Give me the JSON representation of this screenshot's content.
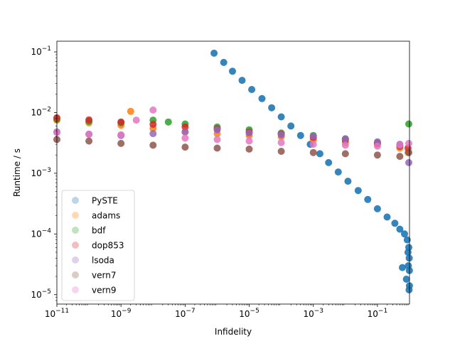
{
  "chart_data": {
    "type": "scatter",
    "title": "",
    "xlabel": "Infidelity",
    "ylabel": "Runtime / s",
    "x_scale": "log",
    "y_scale": "log",
    "xlim": [
      1e-11,
      1
    ],
    "ylim": [
      7e-06,
      0.15
    ],
    "x_ticks": [
      1e-11,
      1e-09,
      1e-07,
      1e-05,
      0.001,
      0.1
    ],
    "x_tick_labels": [
      {
        "base": "10",
        "exp": "−11"
      },
      {
        "base": "10",
        "exp": "−9"
      },
      {
        "base": "10",
        "exp": "−7"
      },
      {
        "base": "10",
        "exp": "−5"
      },
      {
        "base": "10",
        "exp": "−3"
      },
      {
        "base": "10",
        "exp": "−1"
      }
    ],
    "y_ticks": [
      1e-05,
      0.0001,
      0.001,
      0.01,
      0.1
    ],
    "y_tick_labels": [
      {
        "base": "10",
        "exp": "−5"
      },
      {
        "base": "10",
        "exp": "−4"
      },
      {
        "base": "10",
        "exp": "−3"
      },
      {
        "base": "10",
        "exp": "−2"
      },
      {
        "base": "10",
        "exp": "−1"
      }
    ],
    "grid": false,
    "legend_position": "lower-left",
    "series": [
      {
        "name": "PySTE",
        "color": "#1f77b4",
        "x": [
          8e-07,
          1.6e-06,
          3e-06,
          6e-06,
          1.2e-05,
          2.5e-05,
          5e-05,
          0.0001,
          0.0002,
          0.0004,
          0.0008,
          0.0016,
          0.003,
          0.006,
          0.012,
          0.025,
          0.05,
          0.1,
          0.2,
          0.35,
          0.5,
          0.7,
          0.85,
          0.95,
          0.98,
          0.99,
          0.995,
          0.92,
          0.8,
          0.6,
          0.9,
          0.97
        ],
        "y": [
          0.095,
          0.067,
          0.048,
          0.034,
          0.024,
          0.017,
          0.012,
          0.0085,
          0.006,
          0.0042,
          0.003,
          0.0021,
          0.0015,
          0.00105,
          0.00074,
          0.00052,
          0.00037,
          0.00026,
          0.00019,
          0.00015,
          0.00012,
          0.0001,
          8e-05,
          6e-05,
          4e-05,
          2.5e-05,
          1.4e-05,
          3e-05,
          1.8e-05,
          2.8e-05,
          5e-05,
          1.2e-05
        ]
      },
      {
        "name": "adams",
        "color": "#ff7f0e",
        "x": [
          1e-11,
          1e-10,
          1e-09,
          2e-09,
          1e-08,
          1e-07,
          1e-06,
          1e-05,
          0.0001,
          0.001,
          0.01,
          0.1,
          0.5,
          0.9
        ],
        "y": [
          0.0075,
          0.0068,
          0.0062,
          0.0105,
          0.0055,
          0.0048,
          0.0045,
          0.0042,
          0.004,
          0.0036,
          0.0032,
          0.003,
          0.0026,
          0.0022
        ]
      },
      {
        "name": "bdf",
        "color": "#2ca02c",
        "x": [
          1e-11,
          1e-10,
          1e-09,
          1e-08,
          3e-08,
          1e-07,
          1e-06,
          1e-05,
          0.0001,
          0.001,
          0.01,
          0.1,
          0.5,
          0.95
        ],
        "y": [
          0.0078,
          0.0072,
          0.0068,
          0.0075,
          0.007,
          0.0065,
          0.0058,
          0.0052,
          0.0046,
          0.0042,
          0.0037,
          0.0032,
          0.0028,
          0.0065
        ]
      },
      {
        "name": "dop853",
        "color": "#d62728",
        "x": [
          1e-11,
          1e-10,
          1e-09,
          1e-08,
          1e-07,
          1e-06,
          1e-05,
          0.0001,
          0.001,
          0.01,
          0.1,
          0.5,
          0.9
        ],
        "y": [
          0.0082,
          0.0076,
          0.007,
          0.0064,
          0.0058,
          0.0054,
          0.0048,
          0.0044,
          0.0039,
          0.0035,
          0.0031,
          0.0028,
          0.0026
        ]
      },
      {
        "name": "lsoda",
        "color": "#9467bd",
        "x": [
          1e-11,
          1e-10,
          1e-09,
          1e-08,
          1e-07,
          1e-06,
          1e-05,
          0.0001,
          0.001,
          0.01,
          0.1,
          0.5,
          0.95
        ],
        "y": [
          0.0048,
          0.0044,
          0.0042,
          0.0045,
          0.0048,
          0.0052,
          0.0046,
          0.0043,
          0.0041,
          0.0037,
          0.0033,
          0.003,
          0.0015
        ]
      },
      {
        "name": "vern7",
        "color": "#8c564b",
        "x": [
          1e-11,
          1e-10,
          1e-09,
          1e-08,
          1e-07,
          1e-06,
          1e-05,
          0.0001,
          0.001,
          0.01,
          0.1,
          0.5,
          0.95
        ],
        "y": [
          0.0036,
          0.0034,
          0.0031,
          0.0029,
          0.0027,
          0.0026,
          0.0025,
          0.0023,
          0.0022,
          0.0021,
          0.002,
          0.0019,
          0.0022
        ]
      },
      {
        "name": "vern9",
        "color": "#e377c2",
        "x": [
          1e-11,
          1e-10,
          1e-09,
          3e-09,
          1e-08,
          1e-07,
          1e-06,
          1e-05,
          0.0001,
          0.001,
          0.01,
          0.1,
          0.5,
          0.95
        ],
        "y": [
          0.0047,
          0.0044,
          0.0043,
          0.0075,
          0.011,
          0.0038,
          0.0036,
          0.0034,
          0.0032,
          0.003,
          0.0029,
          0.0028,
          0.0029,
          0.0031
        ]
      }
    ]
  }
}
